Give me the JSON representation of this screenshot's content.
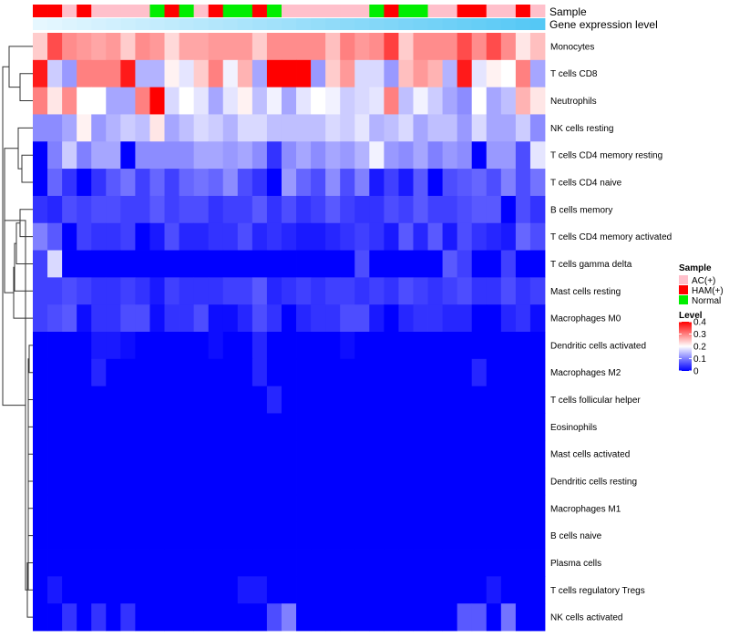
{
  "chart_data": {
    "type": "heatmap",
    "annotations": {
      "sample_label": "Sample",
      "gene_label": "Gene expression level"
    },
    "rows": [
      "Monocytes",
      "T cells CD8",
      "Neutrophils",
      "NK cells resting",
      "T cells CD4 memory resting",
      "T cells CD4 naive",
      "B cells memory",
      "T cells CD4 memory activated",
      "T cells gamma delta",
      "Mast cells resting",
      "Macrophages M0",
      "Dendritic cells activated",
      "Macrophages M2",
      "T cells follicular helper",
      "Eosinophils",
      "Mast cells activated",
      "Dendritic cells resting",
      "Macrophages M1",
      "B cells naive",
      "Plasma cells",
      "T cells regulatory  Tregs",
      "NK cells activated"
    ],
    "sample_groups": [
      "HAM(+)",
      "HAM(+)",
      "AC(+)",
      "HAM(+)",
      "AC(+)",
      "AC(+)",
      "AC(+)",
      "AC(+)",
      "Normal",
      "HAM(+)",
      "Normal",
      "AC(+)",
      "HAM(+)",
      "Normal",
      "Normal",
      "HAM(+)",
      "Normal",
      "AC(+)",
      "AC(+)",
      "AC(+)",
      "AC(+)",
      "AC(+)",
      "AC(+)",
      "Normal",
      "HAM(+)",
      "Normal",
      "Normal",
      "AC(+)",
      "AC(+)",
      "HAM(+)",
      "HAM(+)",
      "AC(+)",
      "AC(+)",
      "HAM(+)",
      "AC(+)"
    ],
    "gene_expression_level": [
      0.02,
      0.04,
      0.06,
      0.08,
      0.1,
      0.12,
      0.14,
      0.16,
      0.18,
      0.2,
      0.22,
      0.24,
      0.26,
      0.28,
      0.3,
      0.32,
      0.34,
      0.36,
      0.38,
      0.4,
      0.42,
      0.44,
      0.46,
      0.48,
      0.5,
      0.52,
      0.54,
      0.56,
      0.58,
      0.6,
      0.62,
      0.64,
      0.66,
      0.68,
      0.7
    ],
    "values": [
      [
        0.24,
        0.34,
        0.29,
        0.28,
        0.27,
        0.28,
        0.24,
        0.29,
        0.28,
        0.23,
        0.27,
        0.27,
        0.28,
        0.28,
        0.28,
        0.24,
        0.29,
        0.29,
        0.29,
        0.29,
        0.25,
        0.3,
        0.28,
        0.29,
        0.35,
        0.24,
        0.29,
        0.29,
        0.29,
        0.34,
        0.29,
        0.34,
        0.29,
        0.22,
        0.25
      ],
      [
        0.38,
        0.16,
        0.12,
        0.3,
        0.3,
        0.3,
        0.38,
        0.14,
        0.14,
        0.21,
        0.18,
        0.24,
        0.3,
        0.19,
        0.26,
        0.13,
        0.4,
        0.4,
        0.4,
        0.12,
        0.24,
        0.28,
        0.17,
        0.17,
        0.12,
        0.25,
        0.28,
        0.26,
        0.14,
        0.38,
        0.18,
        0.21,
        0.2,
        0.3,
        0.13
      ],
      [
        0.3,
        0.22,
        0.29,
        0.2,
        0.2,
        0.13,
        0.13,
        0.3,
        0.4,
        0.17,
        0.2,
        0.18,
        0.13,
        0.18,
        0.21,
        0.15,
        0.19,
        0.13,
        0.18,
        0.2,
        0.19,
        0.16,
        0.17,
        0.18,
        0.3,
        0.15,
        0.19,
        0.16,
        0.13,
        0.11,
        0.2,
        0.13,
        0.15,
        0.26,
        0.22
      ],
      [
        0.11,
        0.11,
        0.13,
        0.21,
        0.12,
        0.14,
        0.16,
        0.15,
        0.22,
        0.13,
        0.15,
        0.17,
        0.16,
        0.14,
        0.17,
        0.17,
        0.15,
        0.15,
        0.15,
        0.15,
        0.17,
        0.16,
        0.18,
        0.14,
        0.15,
        0.17,
        0.13,
        0.15,
        0.15,
        0.12,
        0.17,
        0.13,
        0.13,
        0.16,
        0.11
      ],
      [
        0.0,
        0.1,
        0.16,
        0.1,
        0.13,
        0.13,
        0.0,
        0.11,
        0.11,
        0.11,
        0.11,
        0.13,
        0.13,
        0.12,
        0.13,
        0.11,
        0.04,
        0.11,
        0.13,
        0.11,
        0.13,
        0.12,
        0.14,
        0.19,
        0.12,
        0.11,
        0.13,
        0.1,
        0.12,
        0.11,
        0.0,
        0.12,
        0.12,
        0.06,
        0.18
      ],
      [
        0.0,
        0.08,
        0.04,
        0.0,
        0.04,
        0.07,
        0.09,
        0.05,
        0.08,
        0.05,
        0.08,
        0.09,
        0.08,
        0.11,
        0.06,
        0.04,
        0.0,
        0.12,
        0.08,
        0.06,
        0.11,
        0.06,
        0.1,
        0.02,
        0.05,
        0.02,
        0.07,
        0.0,
        0.06,
        0.07,
        0.08,
        0.06,
        0.1,
        0.06,
        0.09
      ],
      [
        0.04,
        0.03,
        0.06,
        0.05,
        0.06,
        0.06,
        0.05,
        0.05,
        0.07,
        0.05,
        0.06,
        0.06,
        0.04,
        0.05,
        0.05,
        0.07,
        0.04,
        0.06,
        0.04,
        0.05,
        0.07,
        0.05,
        0.04,
        0.04,
        0.06,
        0.05,
        0.07,
        0.05,
        0.05,
        0.06,
        0.07,
        0.07,
        0.0,
        0.06,
        0.04
      ],
      [
        0.1,
        0.07,
        0.0,
        0.05,
        0.04,
        0.04,
        0.05,
        0.0,
        0.02,
        0.06,
        0.03,
        0.03,
        0.04,
        0.04,
        0.06,
        0.03,
        0.04,
        0.03,
        0.02,
        0.02,
        0.03,
        0.04,
        0.05,
        0.04,
        0.02,
        0.07,
        0.03,
        0.07,
        0.02,
        0.06,
        0.04,
        0.03,
        0.02,
        0.08,
        0.06
      ],
      [
        0.05,
        0.17,
        0.0,
        0.0,
        0.0,
        0.0,
        0.0,
        0.0,
        0.0,
        0.0,
        0.0,
        0.0,
        0.0,
        0.0,
        0.0,
        0.0,
        0.0,
        0.0,
        0.0,
        0.0,
        0.0,
        0.0,
        0.06,
        0.0,
        0.0,
        0.0,
        0.0,
        0.0,
        0.07,
        0.05,
        0.0,
        0.0,
        0.05,
        0.0,
        0.0
      ],
      [
        0.05,
        0.05,
        0.06,
        0.05,
        0.04,
        0.04,
        0.05,
        0.04,
        0.02,
        0.05,
        0.04,
        0.04,
        0.04,
        0.05,
        0.05,
        0.07,
        0.03,
        0.04,
        0.05,
        0.04,
        0.05,
        0.05,
        0.04,
        0.05,
        0.04,
        0.06,
        0.05,
        0.04,
        0.05,
        0.06,
        0.04,
        0.04,
        0.06,
        0.04,
        0.05
      ],
      [
        0.05,
        0.06,
        0.07,
        0.01,
        0.04,
        0.04,
        0.06,
        0.06,
        0.01,
        0.04,
        0.04,
        0.06,
        0.01,
        0.01,
        0.03,
        0.06,
        0.04,
        0.0,
        0.03,
        0.04,
        0.04,
        0.06,
        0.06,
        0.02,
        0.0,
        0.03,
        0.04,
        0.04,
        0.03,
        0.03,
        0.0,
        0.0,
        0.03,
        0.04,
        0.01
      ],
      [
        0.0,
        0.0,
        0.0,
        0.0,
        0.02,
        0.02,
        0.01,
        0.0,
        0.0,
        0.0,
        0.0,
        0.0,
        0.01,
        0.0,
        0.0,
        0.03,
        0.0,
        0.0,
        0.0,
        0.0,
        0.0,
        0.01,
        0.0,
        0.0,
        0.0,
        0.0,
        0.0,
        0.0,
        0.0,
        0.0,
        0.0,
        0.0,
        0.0,
        0.0,
        0.0
      ],
      [
        0.0,
        0.0,
        0.0,
        0.0,
        0.03,
        0.0,
        0.0,
        0.0,
        0.0,
        0.0,
        0.0,
        0.0,
        0.0,
        0.0,
        0.0,
        0.03,
        0.0,
        0.0,
        0.0,
        0.0,
        0.0,
        0.0,
        0.0,
        0.0,
        0.0,
        0.0,
        0.0,
        0.0,
        0.0,
        0.0,
        0.03,
        0.0,
        0.0,
        0.0,
        0.0
      ],
      [
        0.0,
        0.0,
        0.0,
        0.0,
        0.0,
        0.0,
        0.0,
        0.0,
        0.0,
        0.0,
        0.0,
        0.0,
        0.0,
        0.0,
        0.0,
        0.0,
        0.03,
        0.0,
        0.0,
        0.0,
        0.0,
        0.0,
        0.0,
        0.0,
        0.0,
        0.0,
        0.0,
        0.0,
        0.0,
        0.0,
        0.0,
        0.0,
        0.0,
        0.0,
        0.0
      ],
      [
        0.0,
        0.0,
        0.0,
        0.0,
        0.0,
        0.0,
        0.0,
        0.0,
        0.0,
        0.0,
        0.0,
        0.0,
        0.0,
        0.0,
        0.0,
        0.0,
        0.0,
        0.0,
        0.0,
        0.0,
        0.0,
        0.0,
        0.0,
        0.0,
        0.0,
        0.0,
        0.0,
        0.0,
        0.0,
        0.0,
        0.0,
        0.0,
        0.0,
        0.0,
        0.0
      ],
      [
        0.0,
        0.0,
        0.0,
        0.0,
        0.0,
        0.0,
        0.0,
        0.0,
        0.0,
        0.0,
        0.0,
        0.0,
        0.0,
        0.0,
        0.0,
        0.0,
        0.0,
        0.0,
        0.0,
        0.0,
        0.0,
        0.0,
        0.0,
        0.0,
        0.0,
        0.0,
        0.0,
        0.0,
        0.0,
        0.0,
        0.0,
        0.0,
        0.0,
        0.0,
        0.0
      ],
      [
        0.0,
        0.0,
        0.0,
        0.0,
        0.0,
        0.0,
        0.0,
        0.0,
        0.0,
        0.0,
        0.0,
        0.0,
        0.0,
        0.0,
        0.0,
        0.0,
        0.0,
        0.0,
        0.0,
        0.0,
        0.0,
        0.0,
        0.0,
        0.0,
        0.0,
        0.0,
        0.0,
        0.0,
        0.0,
        0.0,
        0.0,
        0.0,
        0.0,
        0.0,
        0.0
      ],
      [
        0.0,
        0.0,
        0.0,
        0.0,
        0.0,
        0.0,
        0.0,
        0.0,
        0.0,
        0.0,
        0.0,
        0.0,
        0.0,
        0.0,
        0.0,
        0.0,
        0.0,
        0.0,
        0.0,
        0.0,
        0.0,
        0.0,
        0.0,
        0.0,
        0.0,
        0.0,
        0.0,
        0.0,
        0.0,
        0.0,
        0.0,
        0.0,
        0.0,
        0.0,
        0.0
      ],
      [
        0.0,
        0.0,
        0.0,
        0.0,
        0.0,
        0.0,
        0.0,
        0.0,
        0.0,
        0.0,
        0.0,
        0.0,
        0.0,
        0.0,
        0.0,
        0.0,
        0.0,
        0.0,
        0.0,
        0.0,
        0.0,
        0.0,
        0.0,
        0.0,
        0.0,
        0.0,
        0.0,
        0.0,
        0.0,
        0.0,
        0.0,
        0.0,
        0.0,
        0.0,
        0.0
      ],
      [
        0.0,
        0.0,
        0.0,
        0.0,
        0.0,
        0.0,
        0.0,
        0.0,
        0.0,
        0.0,
        0.0,
        0.0,
        0.0,
        0.0,
        0.0,
        0.0,
        0.0,
        0.0,
        0.0,
        0.0,
        0.0,
        0.0,
        0.0,
        0.0,
        0.0,
        0.0,
        0.0,
        0.0,
        0.0,
        0.0,
        0.0,
        0.0,
        0.0,
        0.0,
        0.0
      ],
      [
        0.0,
        0.02,
        0.0,
        0.0,
        0.0,
        0.0,
        0.0,
        0.0,
        0.0,
        0.0,
        0.0,
        0.0,
        0.0,
        0.0,
        0.02,
        0.02,
        0.0,
        0.0,
        0.0,
        0.0,
        0.0,
        0.0,
        0.0,
        0.0,
        0.0,
        0.0,
        0.0,
        0.0,
        0.0,
        0.0,
        0.0,
        0.02,
        0.0,
        0.0,
        0.0
      ],
      [
        0.0,
        0.0,
        0.04,
        0.0,
        0.04,
        0.0,
        0.04,
        0.0,
        0.0,
        0.0,
        0.0,
        0.0,
        0.0,
        0.0,
        0.0,
        0.0,
        0.06,
        0.1,
        0.0,
        0.0,
        0.0,
        0.0,
        0.0,
        0.0,
        0.0,
        0.0,
        0.0,
        0.0,
        0.0,
        0.07,
        0.07,
        0.0,
        0.09,
        0.0,
        0.0
      ]
    ],
    "legend": {
      "sample": {
        "title": "Sample",
        "items": [
          {
            "label": "AC(+)",
            "color": "#FFC0CB"
          },
          {
            "label": "HAM(+)",
            "color": "#FF0000"
          },
          {
            "label": "Normal",
            "color": "#00EE00"
          }
        ]
      },
      "level": {
        "title": "Level",
        "ticks": [
          0,
          0.1,
          0.2,
          0.3,
          0.4
        ],
        "tick_labels": [
          "0",
          "0.1",
          "0.2",
          "0.3",
          "0.4"
        ],
        "range": [
          0,
          0.4
        ]
      }
    },
    "colors": {
      "low": "#0000FF",
      "mid": "#FFFFFF",
      "high": "#FF0000",
      "gene_low": "#E6F7FF",
      "gene_high": "#55C8F5",
      "dendrogram": "#333333"
    }
  }
}
